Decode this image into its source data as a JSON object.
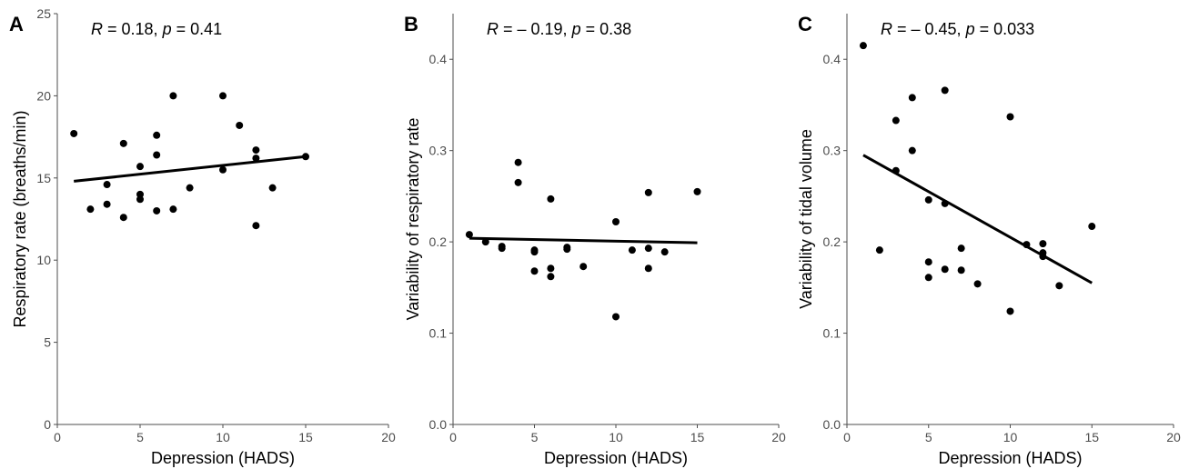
{
  "chart_data": [
    {
      "type": "scatter",
      "panel": "A",
      "annotation": {
        "R": "0.18",
        "p": "0.41"
      },
      "xlabel": "Depression (HADS)",
      "ylabel": "Respiratory rate (breaths/min)",
      "xlim": [
        0,
        20
      ],
      "ylim": [
        0,
        25
      ],
      "xticks": [
        "0",
        "5",
        "10",
        "15",
        "20"
      ],
      "yticks": [
        "0",
        "5",
        "10",
        "15",
        "20",
        "25"
      ],
      "xtick_values": [
        0,
        5,
        10,
        15,
        20
      ],
      "ytick_values": [
        0,
        5,
        10,
        15,
        20,
        25
      ],
      "points": [
        [
          1,
          17.7
        ],
        [
          2,
          13.1
        ],
        [
          3,
          14.6
        ],
        [
          3,
          13.4
        ],
        [
          4,
          17.1
        ],
        [
          4,
          12.6
        ],
        [
          5,
          15.7
        ],
        [
          5,
          14.0
        ],
        [
          5,
          13.7
        ],
        [
          6,
          17.6
        ],
        [
          6,
          16.4
        ],
        [
          6,
          13.0
        ],
        [
          7,
          20.0
        ],
        [
          7,
          13.1
        ],
        [
          8,
          14.4
        ],
        [
          10,
          20.0
        ],
        [
          10,
          15.5
        ],
        [
          11,
          18.2
        ],
        [
          12,
          16.7
        ],
        [
          12,
          16.2
        ],
        [
          12,
          12.1
        ],
        [
          13,
          14.4
        ],
        [
          15,
          16.3
        ]
      ],
      "fit": [
        [
          1,
          14.8
        ],
        [
          15,
          16.3
        ]
      ],
      "grid": false
    },
    {
      "type": "scatter",
      "panel": "B",
      "annotation": {
        "R": "– 0.19",
        "p": "0.38"
      },
      "xlabel": "Depression (HADS)",
      "ylabel": "Variability of respiratory rate",
      "xlim": [
        0,
        20
      ],
      "ylim": [
        0,
        0.45
      ],
      "xticks": [
        "0",
        "5",
        "10",
        "15",
        "20"
      ],
      "yticks": [
        "0.0",
        "0.1",
        "0.2",
        "0.3",
        "0.4"
      ],
      "xtick_values": [
        0,
        5,
        10,
        15,
        20
      ],
      "ytick_values": [
        0,
        0.1,
        0.2,
        0.3,
        0.4
      ],
      "points": [
        [
          1,
          0.208
        ],
        [
          2,
          0.2
        ],
        [
          3,
          0.195
        ],
        [
          3,
          0.193
        ],
        [
          4,
          0.287
        ],
        [
          4,
          0.265
        ],
        [
          5,
          0.191
        ],
        [
          5,
          0.189
        ],
        [
          5,
          0.168
        ],
        [
          6,
          0.247
        ],
        [
          6,
          0.171
        ],
        [
          6,
          0.162
        ],
        [
          7,
          0.194
        ],
        [
          7,
          0.192
        ],
        [
          8,
          0.173
        ],
        [
          10,
          0.222
        ],
        [
          10,
          0.118
        ],
        [
          11,
          0.191
        ],
        [
          12,
          0.254
        ],
        [
          12,
          0.193
        ],
        [
          12,
          0.171
        ],
        [
          13,
          0.189
        ],
        [
          15,
          0.255
        ]
      ],
      "fit": [
        [
          1,
          0.204
        ],
        [
          15,
          0.199
        ]
      ],
      "grid": false
    },
    {
      "type": "scatter",
      "panel": "C",
      "annotation": {
        "R": "– 0.45",
        "p": "0.033"
      },
      "xlabel": "Depression (HADS)",
      "ylabel": "Variability of tidal volume",
      "xlim": [
        0,
        20
      ],
      "ylim": [
        0,
        0.45
      ],
      "xticks": [
        "0",
        "5",
        "10",
        "15",
        "20"
      ],
      "yticks": [
        "0.0",
        "0.1",
        "0.2",
        "0.3",
        "0.4"
      ],
      "xtick_values": [
        0,
        5,
        10,
        15,
        20
      ],
      "ytick_values": [
        0,
        0.1,
        0.2,
        0.3,
        0.4
      ],
      "points": [
        [
          1,
          0.415
        ],
        [
          2,
          0.191
        ],
        [
          3,
          0.333
        ],
        [
          3,
          0.278
        ],
        [
          4,
          0.358
        ],
        [
          4,
          0.3
        ],
        [
          5,
          0.246
        ],
        [
          5,
          0.178
        ],
        [
          5,
          0.161
        ],
        [
          6,
          0.366
        ],
        [
          6,
          0.242
        ],
        [
          6,
          0.17
        ],
        [
          7,
          0.193
        ],
        [
          7,
          0.169
        ],
        [
          8,
          0.154
        ],
        [
          10,
          0.337
        ],
        [
          10,
          0.124
        ],
        [
          11,
          0.197
        ],
        [
          12,
          0.198
        ],
        [
          12,
          0.188
        ],
        [
          12,
          0.184
        ],
        [
          13,
          0.152
        ],
        [
          15,
          0.217
        ]
      ],
      "fit": [
        [
          1,
          0.295
        ],
        [
          15,
          0.155
        ]
      ],
      "grid": false
    }
  ]
}
